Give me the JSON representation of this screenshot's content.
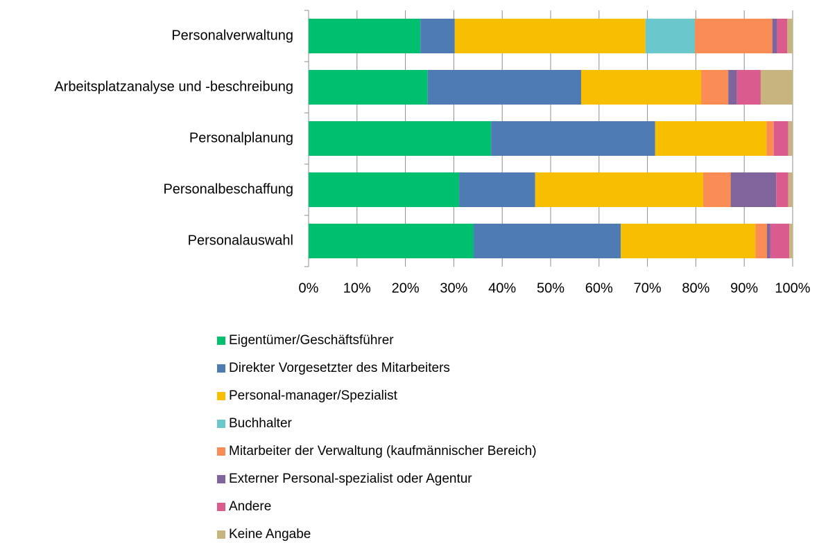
{
  "chart_data": {
    "type": "stacked-barh",
    "categories": [
      "Personalverwaltung",
      "Arbeitsplatzanalyse und -beschreibung",
      "Personalplanung",
      "Personalbeschaffung",
      "Personalauswahl"
    ],
    "series": [
      {
        "name": "Eigentümer/Geschäftsführer",
        "color": "#00c070",
        "values": [
          23.1,
          24.6,
          37.7,
          31.1,
          34.1
        ]
      },
      {
        "name": "Direkter Vorgesetzter des Mitarbeiters",
        "color": "#4f7bb4",
        "values": [
          7.1,
          31.7,
          33.9,
          15.7,
          30.4
        ]
      },
      {
        "name": "Personal-manager/Spezialist",
        "color": "#f8bf00",
        "values": [
          39.4,
          24.8,
          23.0,
          34.7,
          27.8
        ]
      },
      {
        "name": "Buchhalter",
        "color": "#6ac8cc",
        "values": [
          10.2,
          0,
          0,
          0,
          0
        ]
      },
      {
        "name": "Mitarbeiter der Verwaltung (kaufmännischer Bereich)",
        "color": "#fa8c55",
        "values": [
          16.0,
          5.6,
          1.5,
          5.7,
          2.4
        ]
      },
      {
        "name": "Externer Personal-spezialist oder Agentur",
        "color": "#7f659c",
        "values": [
          1.0,
          1.8,
          0,
          9.4,
          0.7
        ]
      },
      {
        "name": "Andere",
        "color": "#da5c8f",
        "values": [
          2.1,
          4.9,
          3.0,
          2.5,
          3.9
        ]
      },
      {
        "name": "Keine Angabe",
        "color": "#c8b47f",
        "values": [
          1.1,
          6.6,
          0.9,
          0.9,
          0.7
        ]
      }
    ],
    "xlim": [
      0,
      100
    ],
    "xticks": [
      {
        "value": 0,
        "label": "0%"
      },
      {
        "value": 10,
        "label": "10%"
      },
      {
        "value": 20,
        "label": "20%"
      },
      {
        "value": 30,
        "label": "30%"
      },
      {
        "value": 40,
        "label": "40%"
      },
      {
        "value": 50,
        "label": "50%"
      },
      {
        "value": 60,
        "label": "60%"
      },
      {
        "value": 70,
        "label": "70%"
      },
      {
        "value": 80,
        "label": "80%"
      },
      {
        "value": 90,
        "label": "90%"
      },
      {
        "value": 100,
        "label": "100%"
      }
    ],
    "grid": true,
    "legend": "bottom"
  }
}
